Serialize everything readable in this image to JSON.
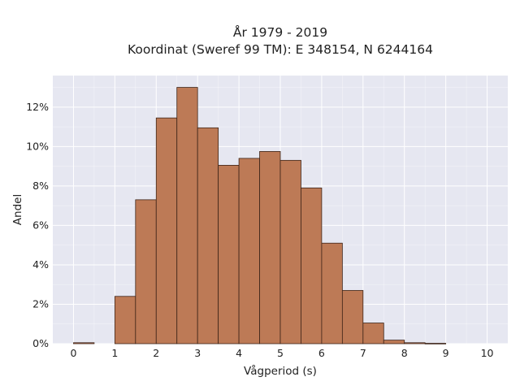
{
  "chart_data": {
    "type": "bar",
    "title": "År 1979 - 2019",
    "subtitle": "Koordinat (Sweref 99 TM): E 348154, N 6244164",
    "xlabel": "Vågperiod (s)",
    "ylabel": "Andel",
    "xlim": [
      -0.5,
      10.5
    ],
    "ylim": [
      0,
      13.6
    ],
    "xticks": [
      "0",
      "1",
      "2",
      "3",
      "4",
      "5",
      "6",
      "7",
      "8",
      "9",
      "10"
    ],
    "yticks": [
      "0%",
      "2%",
      "4%",
      "6%",
      "8%",
      "10%",
      "12%"
    ],
    "bin_width": 0.5,
    "bins": [
      {
        "x0": 0.0,
        "value": 0.05
      },
      {
        "x0": 1.0,
        "value": 2.4
      },
      {
        "x0": 1.5,
        "value": 7.3
      },
      {
        "x0": 2.0,
        "value": 11.45
      },
      {
        "x0": 2.5,
        "value": 13.0
      },
      {
        "x0": 3.0,
        "value": 10.95
      },
      {
        "x0": 3.5,
        "value": 9.05
      },
      {
        "x0": 4.0,
        "value": 9.4
      },
      {
        "x0": 4.5,
        "value": 9.75
      },
      {
        "x0": 5.0,
        "value": 9.3
      },
      {
        "x0": 5.5,
        "value": 7.9
      },
      {
        "x0": 6.0,
        "value": 5.1
      },
      {
        "x0": 6.5,
        "value": 2.7
      },
      {
        "x0": 7.0,
        "value": 1.05
      },
      {
        "x0": 7.5,
        "value": 0.18
      },
      {
        "x0": 8.0,
        "value": 0.05
      },
      {
        "x0": 8.5,
        "value": 0.02
      }
    ],
    "grid": true,
    "colors": {
      "bar": "#bd7a56",
      "bar_edge": "#3d2418",
      "background": "#e6e7f1",
      "grid": "#ffffff"
    }
  }
}
